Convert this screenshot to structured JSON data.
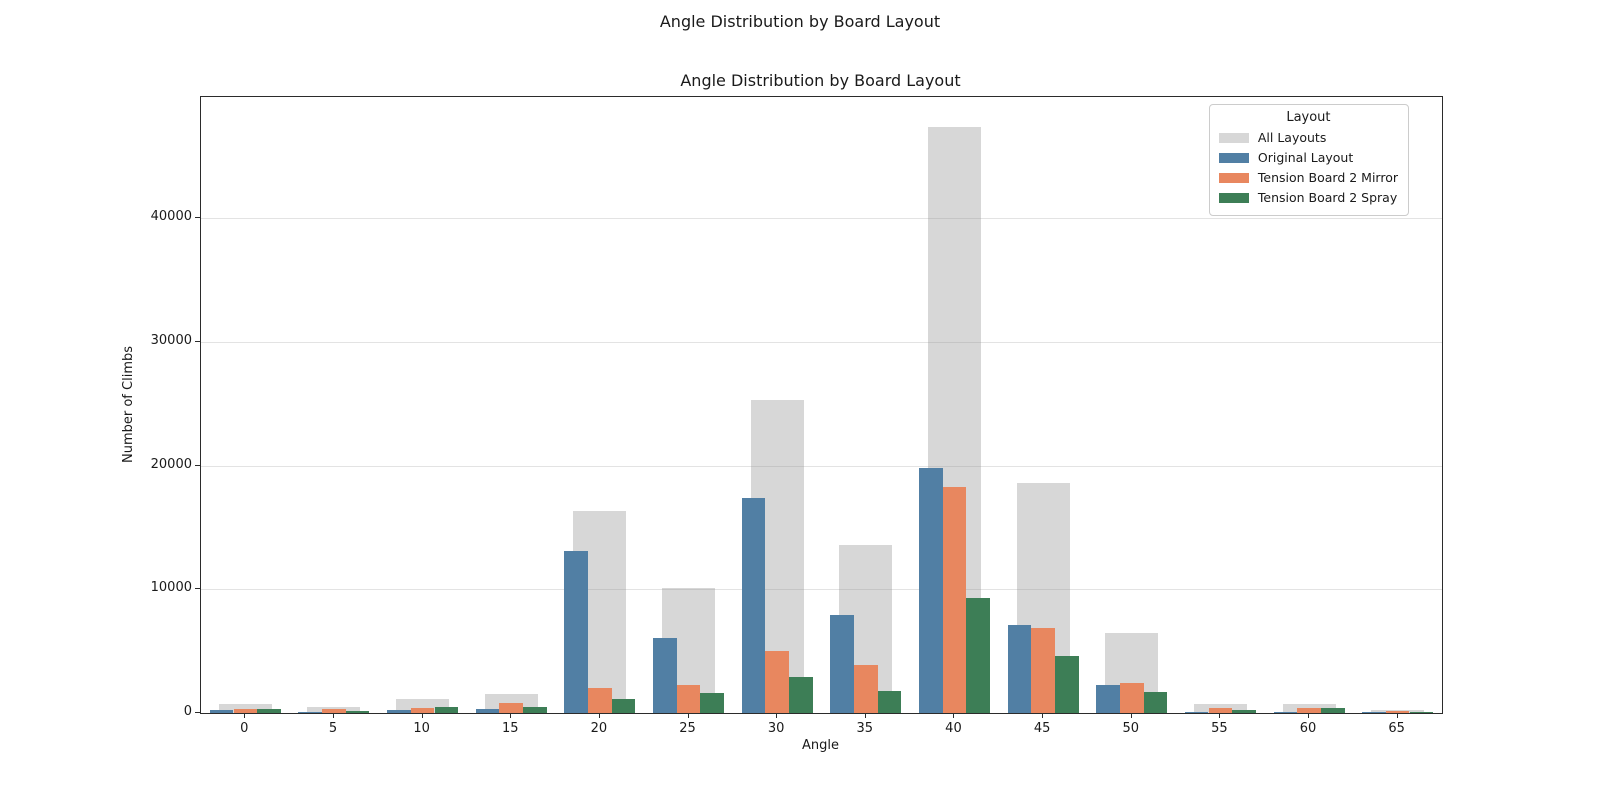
{
  "page": {
    "suptitle": "Angle Distribution by Board Layout"
  },
  "chart_data": {
    "type": "bar",
    "title": "Angle Distribution by Board Layout",
    "xlabel": "Angle",
    "ylabel": "Number of Climbs",
    "categories": [
      0,
      5,
      10,
      15,
      20,
      25,
      30,
      35,
      40,
      45,
      50,
      55,
      60,
      65
    ],
    "series": [
      {
        "name": "All Layouts",
        "color": "rgba(141,141,141,0.35)",
        "style": "background",
        "values": [
          700,
          480,
          1100,
          1500,
          16300,
          10100,
          25300,
          13600,
          47400,
          18600,
          6500,
          730,
          700,
          250
        ]
      },
      {
        "name": "Original Layout",
        "color": "#517FA4",
        "style": "grouped",
        "values": [
          250,
          100,
          280,
          320,
          13100,
          6100,
          17400,
          7900,
          19800,
          7100,
          2300,
          120,
          100,
          60
        ]
      },
      {
        "name": "Tension Board 2 Mirror",
        "color": "#E8875F",
        "style": "grouped",
        "values": [
          350,
          300,
          430,
          780,
          2000,
          2300,
          5000,
          3900,
          18300,
          6900,
          2400,
          400,
          380,
          150
        ]
      },
      {
        "name": "Tension Board 2 Spray",
        "color": "#3D7E56",
        "style": "grouped",
        "values": [
          300,
          200,
          520,
          450,
          1150,
          1650,
          2900,
          1800,
          9300,
          4600,
          1700,
          250,
          420,
          90
        ]
      }
    ],
    "ylim": [
      0,
      49800
    ],
    "yticks": [
      0,
      10000,
      20000,
      30000,
      40000
    ],
    "grid": "horizontal",
    "legend": {
      "title": "Layout",
      "position": "upper right"
    }
  }
}
